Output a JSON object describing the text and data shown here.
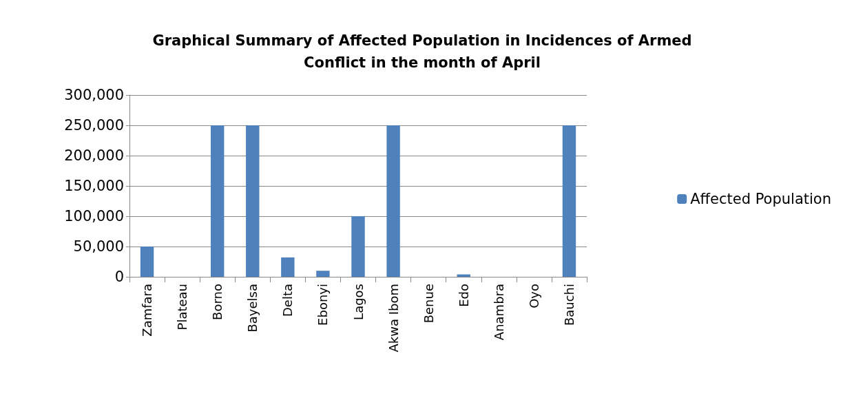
{
  "chart_data": {
    "type": "bar",
    "title": "Graphical Summary of Affected Population in Incidences of Armed\nConflict in the month of April",
    "categories": [
      "Zamfara",
      "Plateau",
      "Borno",
      "Bayelsa",
      "Delta",
      "Ebonyi",
      "Lagos",
      "Akwa Ibom",
      "Benue",
      "Edo",
      "Anambra",
      "Oyo",
      "Bauchi"
    ],
    "series": [
      {
        "name": "Affected Population",
        "color": "#4f81bd",
        "values": [
          50000,
          0,
          250000,
          250000,
          32000,
          10000,
          100000,
          250000,
          0,
          4000,
          0,
          0,
          250000
        ]
      }
    ],
    "ylim": [
      0,
      300000
    ],
    "yticks": [
      0,
      {
        "value": 50000,
        "label": "50,000"
      },
      {
        "value": 100000,
        "label": "100,000"
      },
      {
        "value": 150000,
        "label": "150,000"
      },
      {
        "value": 200000,
        "label": "200,000"
      },
      {
        "value": 250000,
        "label": "250,000"
      },
      {
        "value": 300000,
        "label": "300,000"
      }
    ],
    "grid": "y",
    "legend": "right"
  }
}
